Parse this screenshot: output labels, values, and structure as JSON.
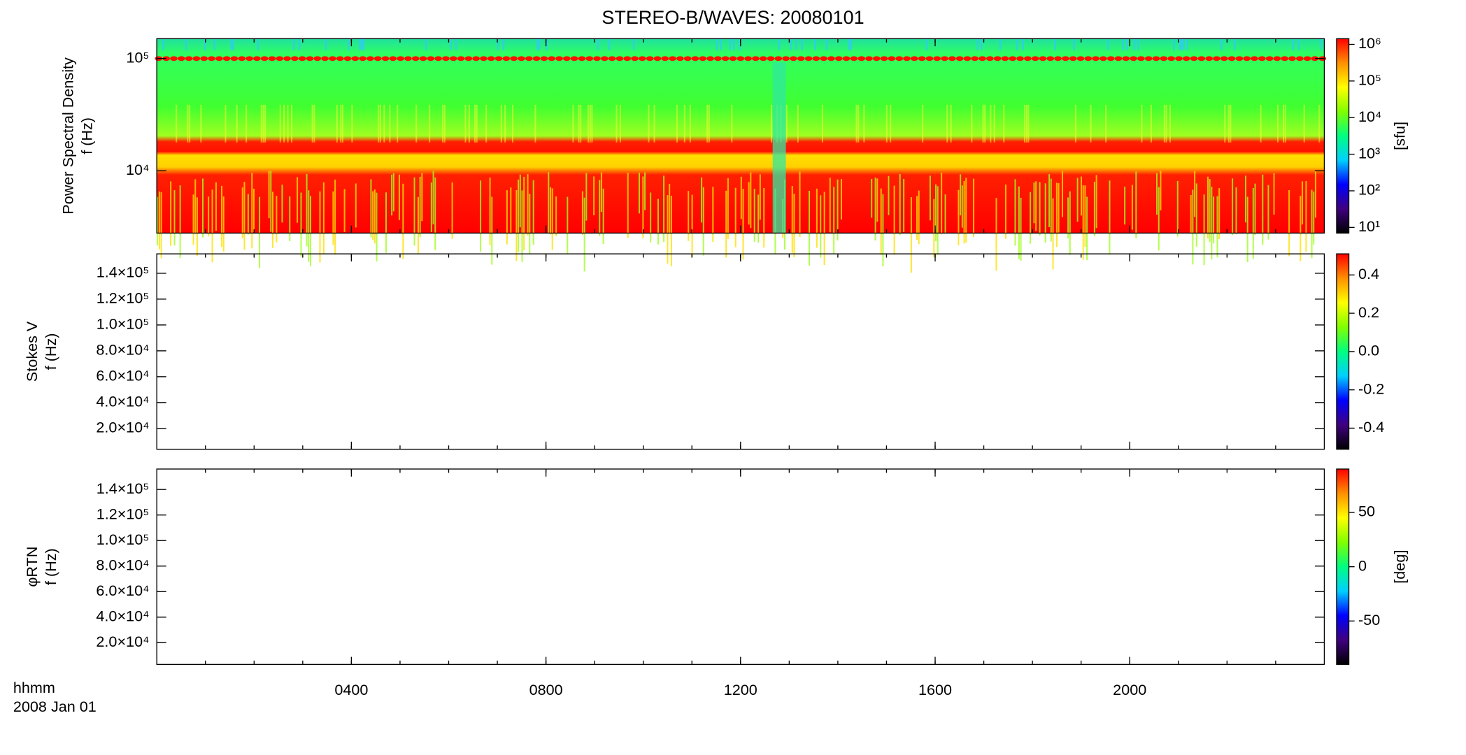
{
  "title": "STEREO-B/WAVES: 20080101",
  "time_label": "hhmm",
  "date_label": "2008 Jan 01",
  "colormap": [
    "#000000",
    "#40007f",
    "#0000ff",
    "#00d0ff",
    "#00ff80",
    "#80ff00",
    "#ffff00",
    "#ff9000",
    "#ff0000"
  ],
  "chart_data": [
    {
      "type": "spectrogram",
      "ylabel": [
        "Power Spectral Density",
        "f (Hz)"
      ],
      "ylog": true,
      "ylim": [
        2790,
        150000
      ],
      "yticks": [
        {
          "value": 10000,
          "label": "10⁴"
        },
        {
          "value": 100000,
          "label": "10⁵"
        }
      ],
      "xlim": [
        0,
        24
      ],
      "clog": true,
      "clim": [
        7,
        1430000
      ],
      "cticks": [
        {
          "value": 10,
          "label": "10¹"
        },
        {
          "value": 100,
          "label": "10²"
        },
        {
          "value": 1000,
          "label": "10³"
        },
        {
          "value": 10000,
          "label": "10⁴"
        },
        {
          "value": 100000,
          "label": "10⁵"
        },
        {
          "value": 1000000,
          "label": "10⁶"
        }
      ],
      "clabel": "[sfu]"
    },
    {
      "type": "spectrogram",
      "ylabel": [
        "Stokes V",
        "f (Hz)"
      ],
      "ylog": false,
      "ylim": [
        3900,
        155000
      ],
      "yticks": [
        {
          "value": 20000,
          "label": "2.0×10⁴"
        },
        {
          "value": 40000,
          "label": "4.0×10⁴"
        },
        {
          "value": 60000,
          "label": "6.0×10⁴"
        },
        {
          "value": 80000,
          "label": "8.0×10⁴"
        },
        {
          "value": 100000,
          "label": "1.0×10⁵"
        },
        {
          "value": 120000,
          "label": "1.2×10⁵"
        },
        {
          "value": 140000,
          "label": "1.4×10⁵"
        }
      ],
      "xlim": [
        0,
        24
      ],
      "clog": false,
      "clim": [
        -0.51,
        0.51
      ],
      "cticks": [
        -0.4,
        -0.2,
        {
          "value": 0,
          "label": "0.0"
        },
        0.2,
        0.4
      ]
    },
    {
      "type": "spectrogram",
      "ylabel": [
        "φRTN",
        "f (Hz)"
      ],
      "ylog": false,
      "ylim": [
        3000,
        156000
      ],
      "yticks": [
        {
          "value": 20000,
          "label": "2.0×10⁴"
        },
        {
          "value": 40000,
          "label": "4.0×10⁴"
        },
        {
          "value": 60000,
          "label": "6.0×10⁴"
        },
        {
          "value": 80000,
          "label": "8.0×10⁴"
        },
        {
          "value": 100000,
          "label": "1.0×10⁵"
        },
        {
          "value": 120000,
          "label": "1.2×10⁵"
        },
        {
          "value": 140000,
          "label": "1.4×10⁵"
        }
      ],
      "xlim": [
        0,
        24
      ],
      "xticks": [
        {
          "value": 4,
          "label": "0400"
        },
        {
          "value": 8,
          "label": "0800"
        },
        {
          "value": 12,
          "label": "1200"
        },
        {
          "value": 16,
          "label": "1600"
        },
        {
          "value": 20,
          "label": "2000"
        }
      ],
      "clog": false,
      "clim": [
        -90,
        90
      ],
      "cticks": [
        -50,
        0,
        50
      ],
      "clabel": "[deg]"
    }
  ]
}
